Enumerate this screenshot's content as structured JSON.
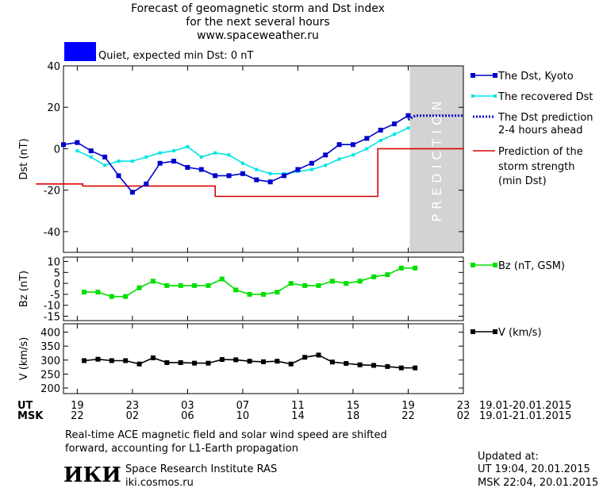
{
  "header": {
    "title_lines": [
      "Forecast of geomagnetic storm and Dst index",
      "for the next several hours",
      "www.spaceweather.ru"
    ],
    "status_text": "Quiet, expected min Dst: 0 nT",
    "status_color": "#0000ff"
  },
  "colors": {
    "dst_kyoto": "#0000cc",
    "dst_recovered": "#00e5e5",
    "dst_prediction": "#0000cc",
    "storm_strength": "#e00000",
    "bz": "#00e000",
    "speed": "#000000",
    "prediction_zone": "#d3d3d3"
  },
  "chart_data": [
    {
      "type": "line",
      "panel": "dst",
      "ylabel": "Dst (nT)",
      "ylim": [
        -50,
        40
      ],
      "y_ticks": [
        40,
        20,
        0,
        -20,
        -40
      ],
      "prediction_text": "PREDICTION",
      "series": [
        {
          "name": "The Dst, Kyoto",
          "marker": "square",
          "x": [
            18.0,
            19.0,
            20.0,
            21.0,
            22.0,
            23.0,
            24.0,
            25.0,
            26.0,
            27.0,
            28.0,
            29.0,
            30.0,
            31.0,
            32.0,
            33.0,
            34.0,
            35.0,
            36.0,
            37.0,
            38.0,
            39.0,
            40.0,
            41.0,
            42.0,
            43.0
          ],
          "y": [
            2,
            3,
            -1,
            -4,
            -13,
            -21,
            -17,
            -7,
            -6,
            -9,
            -10,
            -13,
            -13,
            -12,
            -15,
            -16,
            -13,
            -10,
            -7,
            -3,
            2,
            2,
            5,
            9,
            12,
            16
          ]
        },
        {
          "name": "The recovered Dst",
          "marker": "small-square",
          "x": [
            19.0,
            20.0,
            21.0,
            22.0,
            23.0,
            24.0,
            25.0,
            26.0,
            27.0,
            28.0,
            29.0,
            30.0,
            31.0,
            32.0,
            33.0,
            34.0,
            35.0,
            36.0,
            37.0,
            38.0,
            39.0,
            40.0,
            41.0,
            42.0,
            43.0
          ],
          "y": [
            -1,
            -4,
            -8,
            -6,
            -6,
            -4,
            -2,
            -1,
            1,
            -4,
            -2,
            -3,
            -7,
            -10,
            -12,
            -12,
            -11,
            -10,
            -8,
            -5,
            -3,
            0,
            4,
            7,
            10
          ]
        },
        {
          "name": "The Dst prediction 2-4 hours ahead",
          "style": "dotted",
          "x": [
            43.0,
            43.5,
            44.0,
            44.5,
            45.0,
            45.5,
            46.0,
            46.5,
            47.0
          ],
          "y": [
            14,
            16,
            16,
            16,
            16,
            16,
            16,
            16,
            16
          ]
        },
        {
          "name": "Prediction of the storm strength (min Dst)",
          "style": "step",
          "x": [
            16.0,
            19.4,
            19.4,
            22.6,
            22.6,
            25.9,
            25.9,
            29.0,
            29.0,
            32.5,
            32.5,
            34.0,
            34.0,
            38.0,
            38.0,
            40.8,
            40.8,
            41.0,
            41.0,
            47.0
          ],
          "y": [
            -17,
            -17,
            -18,
            -18,
            -18,
            -18,
            -18,
            -18,
            -23,
            -23,
            -23,
            -23,
            -23,
            -23,
            -23,
            -23,
            0,
            0,
            0,
            0
          ]
        }
      ]
    },
    {
      "type": "line",
      "panel": "bz",
      "ylabel": "Bz (nT)",
      "ylim": [
        -17,
        12
      ],
      "y_ticks": [
        10,
        5,
        0,
        -5,
        -10,
        -15
      ],
      "series": [
        {
          "name": "Bz (nT, GSM)",
          "marker": "square",
          "x": [
            19.5,
            20.5,
            21.5,
            22.5,
            23.5,
            24.5,
            25.5,
            26.5,
            27.5,
            28.5,
            29.5,
            30.5,
            31.5,
            32.5,
            33.5,
            34.5,
            35.5,
            36.5,
            37.5,
            38.5,
            39.5,
            40.5,
            41.5,
            42.5,
            43.5
          ],
          "y": [
            -4,
            -4,
            -6,
            -6,
            -2,
            1,
            -1,
            -1,
            -1,
            -1,
            2,
            -3,
            -5,
            -5,
            -4,
            0,
            -1,
            -1,
            1,
            0,
            1,
            3,
            4,
            7,
            7
          ]
        }
      ]
    },
    {
      "type": "line",
      "panel": "v",
      "ylabel": "V (km/s)",
      "ylim": [
        180,
        430
      ],
      "y_ticks": [
        400,
        350,
        300,
        250,
        200
      ],
      "series": [
        {
          "name": "V (km/s)",
          "marker": "square",
          "x": [
            19.5,
            20.5,
            21.5,
            22.5,
            23.5,
            24.5,
            25.5,
            26.5,
            27.5,
            28.5,
            29.5,
            30.5,
            31.5,
            32.5,
            33.5,
            34.5,
            35.5,
            36.5,
            37.5,
            38.5,
            39.5,
            40.5,
            41.5,
            42.5,
            43.5
          ],
          "y": [
            298,
            303,
            298,
            298,
            286,
            308,
            291,
            291,
            289,
            289,
            302,
            301,
            296,
            294,
            296,
            286,
            310,
            318,
            293,
            288,
            283,
            281,
            277,
            272,
            272
          ]
        }
      ]
    }
  ],
  "axes": {
    "xlim": [
      18,
      47
    ],
    "x_tick_positions": [
      19,
      23,
      27,
      31,
      35,
      39,
      43,
      47
    ],
    "ut_label": "UT",
    "msk_label": "MSK",
    "ut_ticks": [
      "19",
      "23",
      "03",
      "07",
      "11",
      "15",
      "19",
      "23"
    ],
    "msk_ticks": [
      "22",
      "02",
      "06",
      "10",
      "14",
      "18",
      "22",
      "02"
    ],
    "ut_range": "19.01-20.01.2015",
    "msk_range": "19.01-21.01.2015"
  },
  "legend": {
    "dst_kyoto": "The Dst, Kyoto",
    "dst_recovered": "The recovered Dst",
    "dst_pred_1": "The Dst prediction",
    "dst_pred_2": "2-4 hours ahead",
    "storm_1": "Prediction of the",
    "storm_2": "storm strength",
    "storm_3": "(min Dst)",
    "bz": "Bz (nT, GSM)",
    "v": "V (km/s)"
  },
  "footer": {
    "note_1": "Real-time ACE magnetic field and solar wind speed are shifted",
    "note_2": "forward, accounting for L1-Earth propagation",
    "logo": "ИКИ",
    "institute": "Space Research Institute RAS",
    "site": "iki.cosmos.ru",
    "updated_label": "Updated at:",
    "updated_ut": "UT  19:04, 20.01.2015",
    "updated_msk": "MSK 22:04, 20.01.2015"
  }
}
